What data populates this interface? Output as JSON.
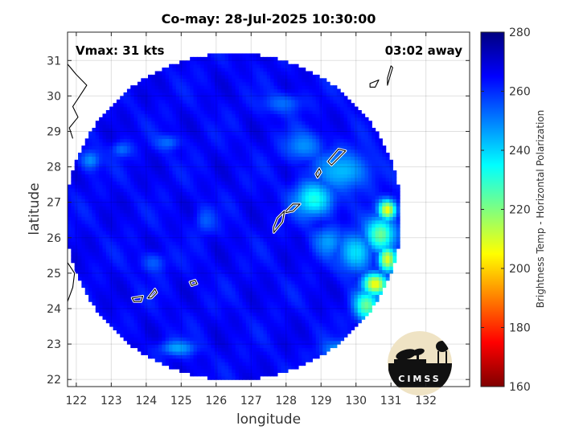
{
  "figure": {
    "title": "Co-may: 28-Jul-2025 10:30:00",
    "annotation_left": "Vmax: 31 kts",
    "annotation_right": "03:02 away",
    "logo_text": "CIMSS"
  },
  "chart_data": {
    "type": "heatmap",
    "title": "Co-may: 28-Jul-2025 10:30:00",
    "xlabel": "longitude",
    "ylabel": "latitude",
    "xlim": [
      121.75,
      133.25
    ],
    "ylim": [
      21.8,
      31.8
    ],
    "xticks": [
      122,
      123,
      124,
      125,
      126,
      127,
      128,
      129,
      130,
      131,
      132
    ],
    "yticks": [
      22,
      23,
      24,
      25,
      26,
      27,
      28,
      29,
      30,
      31
    ],
    "grid": true,
    "colorbar": {
      "label": "Brightness Temp - Horizontal Polarization",
      "min": 160,
      "max": 280,
      "ticks": [
        160,
        180,
        200,
        220,
        240,
        260,
        280
      ],
      "colormap": [
        "#7f0000",
        "#ff0000",
        "#ffff00",
        "#00ffff",
        "#0000ff",
        "#00007f"
      ]
    },
    "background_value": 265,
    "swath": {
      "center_lon": 126.5,
      "center_lat": 26.6,
      "radius_lon": 4.8,
      "radius_lat": 4.6,
      "east_cut_lon": 132.6
    },
    "features": [
      {
        "lon": 126.3,
        "lat": 26.9,
        "sigma_lon": 0.8,
        "sigma_lat": 0.7,
        "value": 275
      },
      {
        "lon": 127.2,
        "lat": 25.6,
        "sigma_lon": 1.0,
        "sigma_lat": 0.8,
        "value": 272
      },
      {
        "lon": 128.8,
        "lat": 27.1,
        "sigma_lon": 0.4,
        "sigma_lat": 0.35,
        "value": 232
      },
      {
        "lon": 129.6,
        "lat": 27.9,
        "sigma_lon": 0.6,
        "sigma_lat": 0.4,
        "value": 243
      },
      {
        "lon": 128.5,
        "lat": 28.6,
        "sigma_lon": 0.4,
        "sigma_lat": 0.3,
        "value": 248
      },
      {
        "lon": 130.9,
        "lat": 26.8,
        "sigma_lon": 0.18,
        "sigma_lat": 0.2,
        "value": 205
      },
      {
        "lon": 130.7,
        "lat": 26.1,
        "sigma_lon": 0.3,
        "sigma_lat": 0.35,
        "value": 222
      },
      {
        "lon": 130.9,
        "lat": 25.4,
        "sigma_lon": 0.18,
        "sigma_lat": 0.25,
        "value": 208
      },
      {
        "lon": 130.55,
        "lat": 24.7,
        "sigma_lon": 0.25,
        "sigma_lat": 0.22,
        "value": 205
      },
      {
        "lon": 130.3,
        "lat": 24.1,
        "sigma_lon": 0.25,
        "sigma_lat": 0.3,
        "value": 222
      },
      {
        "lon": 130.4,
        "lat": 23.6,
        "sigma_lon": 0.12,
        "sigma_lat": 0.12,
        "value": 188
      },
      {
        "lon": 130.0,
        "lat": 25.6,
        "sigma_lon": 0.35,
        "sigma_lat": 0.4,
        "value": 238
      },
      {
        "lon": 129.2,
        "lat": 25.9,
        "sigma_lon": 0.3,
        "sigma_lat": 0.3,
        "value": 246
      },
      {
        "lon": 129.9,
        "lat": 22.8,
        "sigma_lon": 0.5,
        "sigma_lat": 0.2,
        "value": 232
      },
      {
        "lon": 131.3,
        "lat": 23.6,
        "sigma_lon": 0.3,
        "sigma_lat": 0.6,
        "value": 238
      },
      {
        "lon": 124.9,
        "lat": 22.9,
        "sigma_lon": 0.35,
        "sigma_lat": 0.15,
        "value": 245
      },
      {
        "lon": 122.4,
        "lat": 28.2,
        "sigma_lon": 0.2,
        "sigma_lat": 0.2,
        "value": 248
      },
      {
        "lon": 124.6,
        "lat": 28.7,
        "sigma_lon": 0.25,
        "sigma_lat": 0.15,
        "value": 252
      },
      {
        "lon": 123.3,
        "lat": 28.5,
        "sigma_lon": 0.2,
        "sigma_lat": 0.15,
        "value": 252
      },
      {
        "lon": 125.7,
        "lat": 26.5,
        "sigma_lon": 0.2,
        "sigma_lat": 0.25,
        "value": 254
      },
      {
        "lon": 124.2,
        "lat": 25.3,
        "sigma_lon": 0.25,
        "sigma_lat": 0.2,
        "value": 254
      },
      {
        "lon": 127.9,
        "lat": 29.8,
        "sigma_lon": 0.4,
        "sigma_lat": 0.2,
        "value": 252
      },
      {
        "lon": 131.8,
        "lat": 29.4,
        "sigma_lon": 0.3,
        "sigma_lat": 0.3,
        "value": 252
      }
    ],
    "coastlines": [
      {
        "name": "amami-oshima",
        "points": [
          [
            129.3,
            28.05
          ],
          [
            129.7,
            28.45
          ],
          [
            129.5,
            28.5
          ],
          [
            129.2,
            28.15
          ]
        ]
      },
      {
        "name": "tokunoshima",
        "points": [
          [
            128.9,
            27.7
          ],
          [
            129.0,
            27.85
          ],
          [
            128.95,
            27.95
          ],
          [
            128.85,
            27.8
          ]
        ]
      },
      {
        "name": "okinawa-north",
        "points": [
          [
            127.95,
            26.7
          ],
          [
            128.2,
            26.95
          ],
          [
            128.4,
            26.95
          ],
          [
            128.2,
            26.75
          ]
        ]
      },
      {
        "name": "okinawa-south",
        "points": [
          [
            127.65,
            26.15
          ],
          [
            127.9,
            26.45
          ],
          [
            127.95,
            26.75
          ],
          [
            127.75,
            26.55
          ],
          [
            127.65,
            26.3
          ]
        ]
      },
      {
        "name": "daito",
        "points": [
          [
            125.25,
            24.75
          ],
          [
            125.4,
            24.8
          ],
          [
            125.45,
            24.7
          ],
          [
            125.3,
            24.65
          ]
        ]
      },
      {
        "name": "ishigaki",
        "points": [
          [
            124.05,
            24.3
          ],
          [
            124.25,
            24.55
          ],
          [
            124.3,
            24.45
          ],
          [
            124.15,
            24.3
          ]
        ]
      },
      {
        "name": "iriomote",
        "points": [
          [
            123.6,
            24.3
          ],
          [
            123.9,
            24.35
          ],
          [
            123.85,
            24.2
          ],
          [
            123.65,
            24.2
          ]
        ]
      },
      {
        "name": "yakushima",
        "points": [
          [
            130.4,
            30.35
          ],
          [
            130.65,
            30.45
          ],
          [
            130.55,
            30.25
          ],
          [
            130.4,
            30.25
          ]
        ]
      },
      {
        "name": "tanegashima",
        "points": [
          [
            130.9,
            30.3
          ],
          [
            131.05,
            30.8
          ],
          [
            131.0,
            30.85
          ],
          [
            130.9,
            30.5
          ]
        ]
      },
      {
        "name": "china-coast-north",
        "points": [
          [
            121.75,
            30.9
          ],
          [
            122.0,
            30.6
          ],
          [
            122.3,
            30.3
          ],
          [
            122.1,
            30.0
          ],
          [
            121.9,
            29.7
          ],
          [
            122.05,
            29.4
          ],
          [
            121.8,
            29.1
          ],
          [
            121.9,
            28.8
          ]
        ]
      },
      {
        "name": "taiwan-corner",
        "points": [
          [
            121.75,
            25.3
          ],
          [
            121.95,
            25.0
          ],
          [
            121.9,
            24.6
          ],
          [
            121.75,
            24.2
          ]
        ]
      }
    ]
  }
}
